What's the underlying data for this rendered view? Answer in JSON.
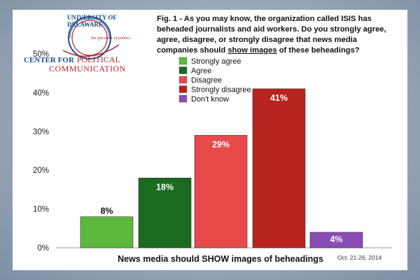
{
  "logo": {
    "university": "UNIVERSITY OF DELAWARE",
    "epicenter": "the epicenter of politics",
    "center_for": "CENTER FOR",
    "political": "POLITICAL",
    "communication": "COMMUNICATION"
  },
  "figure": {
    "title_part1": "Fig. 1 - As you may know, the organization called ISIS has beheaded journalists and aid workers. Do you strongly agree, agree, disagree, or strongly disagree that news media companies should ",
    "title_underlined": "show images",
    "title_part2": " of these beheadings?",
    "date": "Oct. 21-26, 2014"
  },
  "chart_data": {
    "type": "bar",
    "title": "Fig. 1 - As you may know, the organization called ISIS has beheaded journalists and aid workers. Do you strongly agree, agree, disagree, or strongly disagree that news media companies should show images of these beheadings?",
    "xlabel": "News media should SHOW images of beheadings",
    "ylabel": "",
    "ylim": [
      0,
      50
    ],
    "yticks": [
      "0%",
      "10%",
      "20%",
      "30%",
      "40%",
      "50%"
    ],
    "grid": false,
    "legend_position": "top-left",
    "categories": [
      "Strongly agree",
      "Agree",
      "Disagree",
      "Strongly disagree",
      "Don't know"
    ],
    "values": [
      8,
      18,
      29,
      41,
      4
    ],
    "value_labels": [
      "8%",
      "18%",
      "29%",
      "41%",
      "4%"
    ],
    "colors": [
      "#5cb83a",
      "#1a6b1f",
      "#e84a4a",
      "#b8231e",
      "#8a4bb5"
    ],
    "label_colors": [
      "#111111",
      "#ffffff",
      "#ffffff",
      "#ffffff",
      "#ffffff"
    ]
  }
}
